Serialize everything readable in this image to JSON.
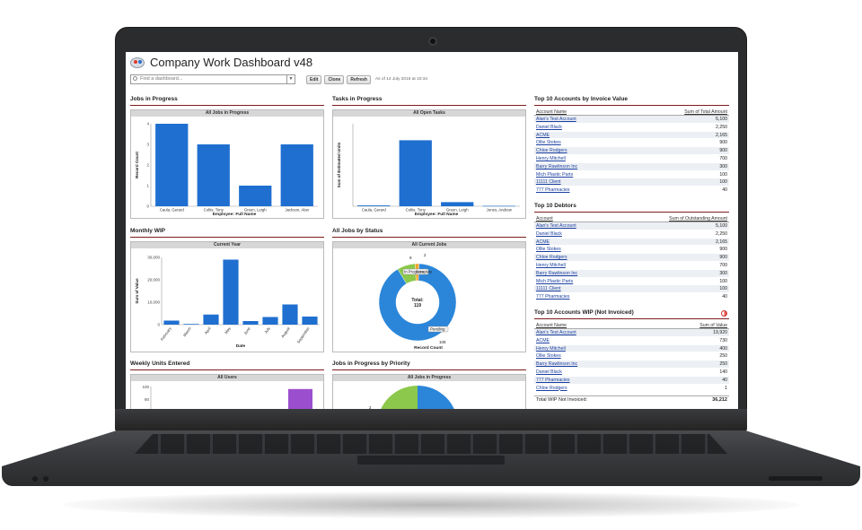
{
  "dashboard": {
    "title": "Company Work Dashboard v48",
    "find_placeholder": "Find a dashboard...",
    "buttons": {
      "edit": "Edit",
      "clone": "Clone",
      "refresh": "Refresh"
    },
    "as_of": "As of 14 July 2016 at 10:34"
  },
  "panels": {
    "jobs_in_progress": {
      "title": "Jobs in Progress",
      "chart_header": "All Jobs in Progress"
    },
    "tasks_in_progress": {
      "title": "Tasks in Progress",
      "chart_header": "All Open Tasks"
    },
    "monthly_wip": {
      "title": "Monthly WIP",
      "chart_header": "Current Year"
    },
    "jobs_by_status": {
      "title": "All Jobs by Status",
      "chart_header": "All Current Jobs"
    },
    "weekly_units": {
      "title": "Weekly Units Entered",
      "chart_header": "All Users"
    },
    "jobs_by_priority": {
      "title": "Jobs in Progress by Priority",
      "chart_header": "All Jobs in Progress"
    }
  },
  "chart_data": [
    {
      "type": "bar",
      "title": "All Jobs in Progress",
      "xlabel": "Employee: Full Name",
      "ylabel": "Record Count",
      "categories": [
        "Caula, Gerard",
        "Coltis, Tony",
        "Green, Leigh",
        "Jackson, Alan"
      ],
      "values": [
        4,
        3,
        1,
        3
      ],
      "ylim": [
        0,
        4
      ],
      "yticks": [
        "0",
        "1",
        "2",
        "3",
        "4"
      ],
      "color": "#1f6fd0"
    },
    {
      "type": "bar",
      "title": "All Open Tasks",
      "xlabel": "Employee: Full Name",
      "ylabel": "Sum of Estimated Units",
      "categories": [
        "Caula, Gerard",
        "Coltis, Tony",
        "Green, Leigh",
        "Jones, Andrew"
      ],
      "values": [
        2,
        160,
        10,
        1
      ],
      "ylim": [
        0,
        200
      ],
      "color": "#1f6fd0"
    },
    {
      "type": "bar",
      "title": "Current Year",
      "xlabel": "Date",
      "ylabel": "Sum of Value",
      "categories": [
        "February",
        "March",
        "April",
        "May",
        "June",
        "July",
        "August",
        "September"
      ],
      "values": [
        1800,
        300,
        4500,
        29000,
        1600,
        3400,
        9000,
        3600
      ],
      "ylim": [
        0,
        30000
      ],
      "yticks": [
        "0",
        "10,000",
        "20,000",
        "30,000"
      ],
      "color": "#1f6fd0"
    },
    {
      "type": "pie",
      "title": "All Current Jobs",
      "xlabel": "Record Count",
      "total_label": "Total:",
      "total": "119",
      "slices": [
        {
          "label": "In Progress",
          "value": 9,
          "color": "#8cc84b"
        },
        {
          "label": "Complete",
          "value": 2,
          "color": "#f0a52a"
        },
        {
          "label": "Pending",
          "value": 108,
          "color": "#2b86d9"
        }
      ],
      "value_labels": [
        "9",
        "2",
        "108"
      ]
    },
    {
      "type": "bar",
      "title": "All Users",
      "yticks": [
        "80",
        "100"
      ],
      "values": [
        96
      ],
      "color": "#9b4fcf"
    },
    {
      "type": "pie",
      "title": "All Jobs in Progress",
      "value_labels": [
        "2"
      ],
      "colors": [
        "#8cc84b",
        "#2b86d9"
      ]
    }
  ],
  "top_accounts": {
    "title": "Top 10 Accounts by Invoice Value",
    "col_account": "Account Name",
    "col_amount": "Sum of Total Amount",
    "rows": [
      {
        "name": "Alan's Test Account",
        "amount": "5,100"
      },
      {
        "name": "Daniel Black",
        "amount": "2,250"
      },
      {
        "name": "ACME",
        "amount": "2,165"
      },
      {
        "name": "Ollie Stokes",
        "amount": "900"
      },
      {
        "name": "Chloe Rodgers",
        "amount": "900"
      },
      {
        "name": "Henry Mitchell",
        "amount": "700"
      },
      {
        "name": "Barry Rawlinson Inc",
        "amount": "300"
      },
      {
        "name": "Mich Plastic Parts",
        "amount": "100"
      },
      {
        "name": "11111 Client",
        "amount": "100"
      },
      {
        "name": "777 Pharmacies",
        "amount": "40"
      }
    ]
  },
  "top_debtors": {
    "title": "Top 10 Debtors",
    "col_account": "Account",
    "col_amount": "Sum of Outstanding Amount",
    "rows": [
      {
        "name": "Alan's Test Account",
        "amount": "5,100"
      },
      {
        "name": "Daniel Black",
        "amount": "2,250"
      },
      {
        "name": "ACME",
        "amount": "2,165"
      },
      {
        "name": "Ollie Stokes",
        "amount": "900"
      },
      {
        "name": "Chloe Rodgers",
        "amount": "900"
      },
      {
        "name": "Henry Mitchell",
        "amount": "700"
      },
      {
        "name": "Barry Rawlinson Inc",
        "amount": "300"
      },
      {
        "name": "Mich Plastic Parts",
        "amount": "100"
      },
      {
        "name": "11111 Client",
        "amount": "100"
      },
      {
        "name": "777 Pharmacies",
        "amount": "40"
      }
    ]
  },
  "top_wip": {
    "title": "Top 10 Accounts WIP (Not Invoiced)",
    "col_account": "Account Name",
    "col_amount": "Sum of Value",
    "rows": [
      {
        "name": "Alan's Test Account",
        "amount": "19,920"
      },
      {
        "name": "ACME",
        "amount": "730"
      },
      {
        "name": "Henry Mitchell",
        "amount": "400"
      },
      {
        "name": "Ollie Stokes",
        "amount": "250"
      },
      {
        "name": "Barry Rawlinson Inc",
        "amount": "250"
      },
      {
        "name": "Daniel Black",
        "amount": "140"
      },
      {
        "name": "777 Pharmacies",
        "amount": "40"
      },
      {
        "name": "Chloe Rodgers",
        "amount": "1"
      }
    ],
    "total_label": "Total WIP Not Invoiced:",
    "total_value": "36,212"
  }
}
